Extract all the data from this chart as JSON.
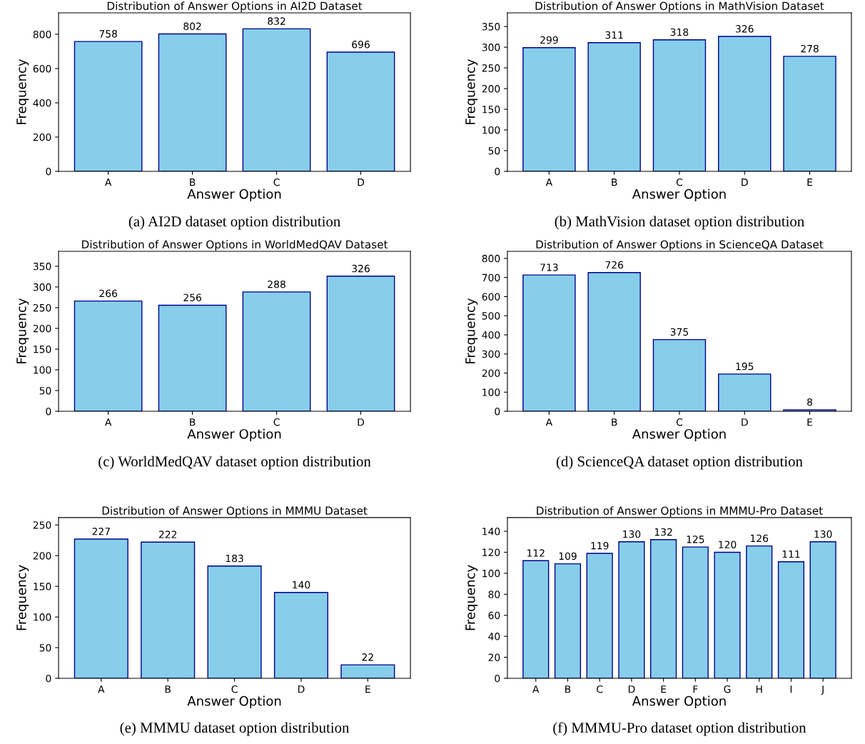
{
  "chart_data": [
    {
      "type": "bar",
      "title": "Distribution of Answer Options in AI2D Dataset",
      "xlabel": "Answer Option",
      "ylabel": "Frequency",
      "categories": [
        "A",
        "B",
        "C",
        "D"
      ],
      "values": [
        758,
        802,
        832,
        696
      ],
      "color": "#87ceeb",
      "ylim": [
        0,
        925
      ],
      "yticks": [
        0,
        200,
        400,
        600,
        800
      ],
      "data_labels": true,
      "annotations": [
        "(a) AI2D dataset option distribution"
      ]
    },
    {
      "type": "bar",
      "title": "Distribution of Answer Options in MathVision Dataset",
      "xlabel": "Answer Option",
      "ylabel": "Frequency",
      "categories": [
        "A",
        "B",
        "C",
        "D",
        "E"
      ],
      "values": [
        299,
        311,
        318,
        326,
        278
      ],
      "color": "#87ceeb",
      "ylim": [
        0,
        383
      ],
      "yticks": [
        0,
        50,
        100,
        150,
        200,
        250,
        300,
        350
      ],
      "data_labels": true,
      "annotations": [
        "(b) MathVision dataset option distribution"
      ]
    },
    {
      "type": "bar",
      "title": "Distribution of Answer Options in WorldMedQAV Dataset",
      "xlabel": "Answer Option",
      "ylabel": "Frequency",
      "categories": [
        "A",
        "B",
        "C",
        "D"
      ],
      "values": [
        266,
        256,
        288,
        326
      ],
      "color": "#87ceeb",
      "ylim": [
        0,
        386
      ],
      "yticks": [
        0,
        50,
        100,
        150,
        200,
        250,
        300,
        350
      ],
      "data_labels": true,
      "annotations": [
        "(c) WorldMedQAV dataset option distribution"
      ]
    },
    {
      "type": "bar",
      "title": "Distribution of Answer Options in ScienceQA Dataset",
      "xlabel": "Answer Option",
      "ylabel": "Frequency",
      "categories": [
        "A",
        "B",
        "C",
        "D",
        "E"
      ],
      "values": [
        713,
        726,
        375,
        195,
        8
      ],
      "color": "#87ceeb",
      "ylim": [
        0,
        837
      ],
      "yticks": [
        0,
        100,
        200,
        300,
        400,
        500,
        600,
        700,
        800
      ],
      "data_labels": true,
      "annotations": [
        "(d) ScienceQA dataset option distribution"
      ]
    },
    {
      "type": "bar",
      "title": "Distribution of Answer Options in MMMU Dataset",
      "xlabel": "Answer Option",
      "ylabel": "Frequency",
      "categories": [
        "A",
        "B",
        "C",
        "D",
        "E"
      ],
      "values": [
        227,
        222,
        183,
        140,
        22
      ],
      "color": "#87ceeb",
      "ylim": [
        0,
        262
      ],
      "yticks": [
        0,
        50,
        100,
        150,
        200,
        250
      ],
      "data_labels": true,
      "annotations": [
        "(e) MMMU dataset option distribution"
      ]
    },
    {
      "type": "bar",
      "title": "Distribution of Answer Options in MMMU-Pro Dataset",
      "xlabel": "Answer Option",
      "ylabel": "Frequency",
      "categories": [
        "A",
        "B",
        "C",
        "D",
        "E",
        "F",
        "G",
        "H",
        "I",
        "J"
      ],
      "values": [
        112,
        109,
        119,
        130,
        132,
        125,
        120,
        126,
        111,
        130
      ],
      "color": "#87ceeb",
      "ylim": [
        0,
        153
      ],
      "yticks": [
        0,
        20,
        40,
        60,
        80,
        100,
        120,
        140
      ],
      "data_labels": true,
      "annotations": [
        "(f) MMMU-Pro dataset option distribution"
      ]
    }
  ]
}
